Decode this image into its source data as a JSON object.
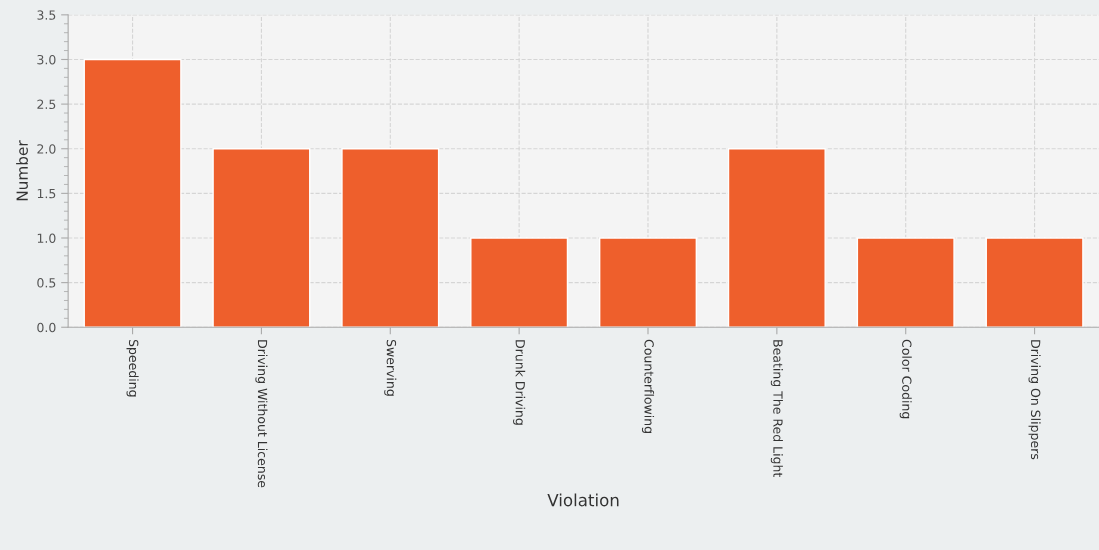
{
  "chart_data": {
    "type": "bar",
    "categories": [
      "Speeding",
      "Driving Without License",
      "Swerving",
      "Drunk Driving",
      "Counterflowing",
      "Beating The Red Light",
      "Color Coding",
      "Driving On Slippers"
    ],
    "values": [
      3,
      2,
      2,
      1,
      1,
      2,
      1,
      1
    ],
    "color": "#ee5f2c",
    "xlabel": "Violation",
    "ylabel": "Number",
    "ylim": [
      0,
      3.5
    ],
    "yticks": [
      {
        "value": 0,
        "label": "0.0"
      },
      {
        "value": 0.5,
        "label": "0.5"
      },
      {
        "value": 1,
        "label": "1.0"
      },
      {
        "value": 1.5,
        "label": "1.5"
      },
      {
        "value": 2,
        "label": "2.0"
      },
      {
        "value": 2.5,
        "label": "2.5"
      },
      {
        "value": 3,
        "label": "3.0"
      },
      {
        "value": 3.5,
        "label": "3.5"
      }
    ],
    "grid": true
  }
}
